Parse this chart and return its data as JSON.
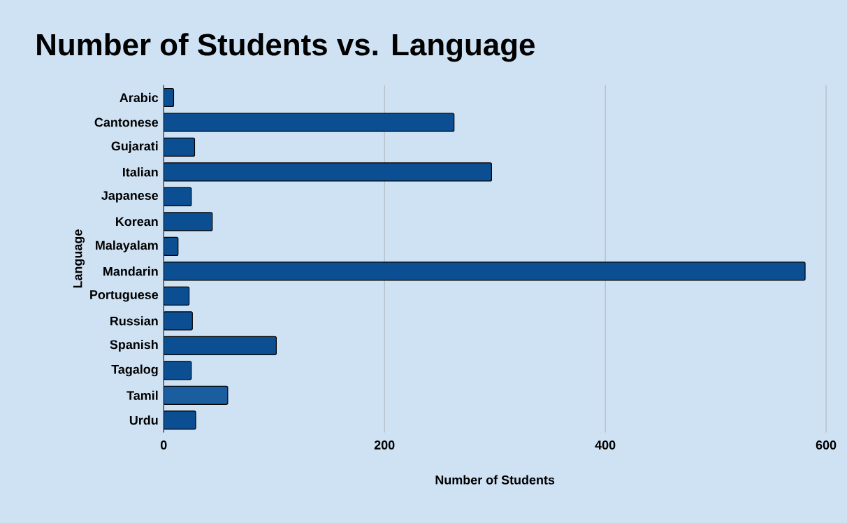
{
  "chart_data": {
    "type": "bar",
    "orientation": "horizontal",
    "title": "Number of Students  vs. Language",
    "xlabel": "Number of Students",
    "ylabel": "Language",
    "categories": [
      "Arabic",
      "Cantonese",
      "Gujarati",
      "Italian",
      "Japanese",
      "Korean",
      "Malayalam",
      "Mandarin",
      "Portuguese",
      "Russian",
      "Spanish",
      "Tagalog",
      "Tamil",
      "Urdu"
    ],
    "values": [
      9,
      263,
      28,
      297,
      25,
      44,
      13,
      581,
      23,
      26,
      102,
      25,
      58,
      29
    ],
    "colors": [
      "#0b4f92",
      "#0b4f92",
      "#0b4f92",
      "#0b4f92",
      "#0b4f92",
      "#0b4f92",
      "#0b4f92",
      "#0b4f92",
      "#0b4f92",
      "#0b4f92",
      "#0b4f92",
      "#0b4f92",
      "#1a5ea0",
      "#0b4f92"
    ],
    "xlim": [
      0,
      600
    ],
    "xticks": [
      0,
      200,
      400,
      600
    ],
    "grid": "x"
  }
}
